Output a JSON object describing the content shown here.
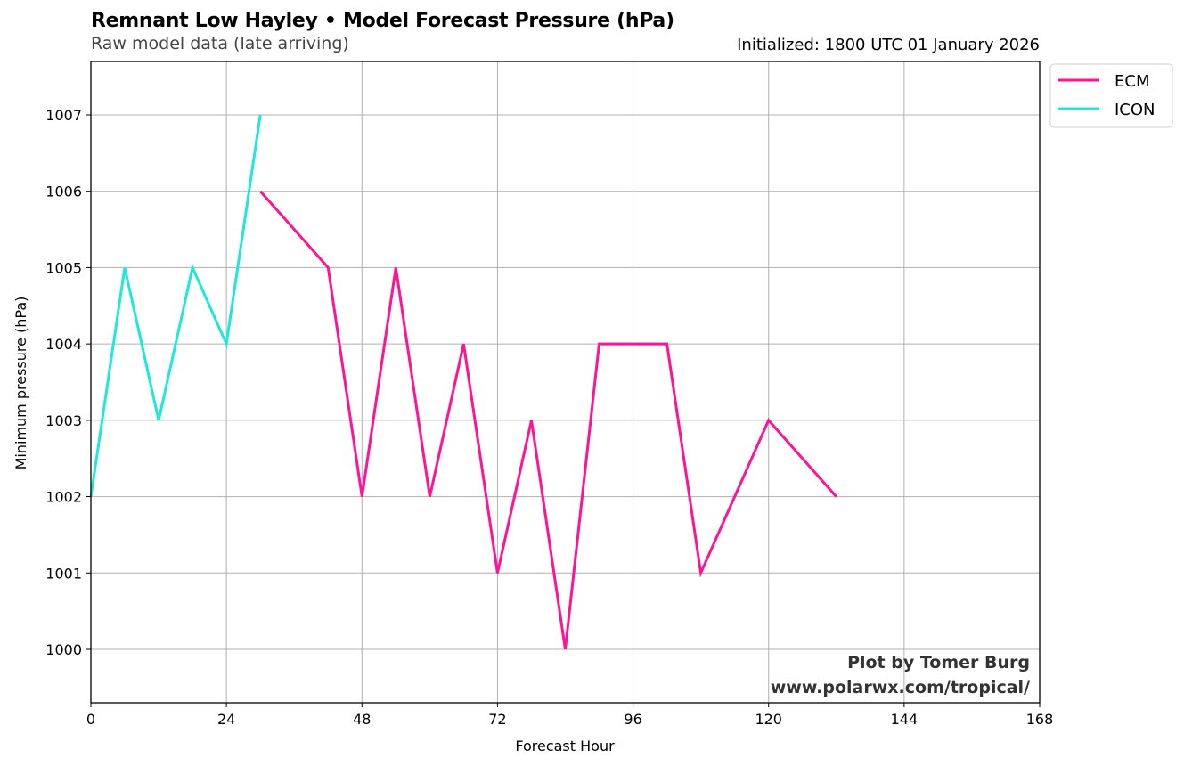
{
  "header": {
    "title": "Remnant Low Hayley • Model Forecast Pressure (hPa)",
    "subtitle": "Raw model data (late arriving)",
    "initialized": "Initialized: 1800 UTC 01 January 2026"
  },
  "credits": {
    "line1": "Plot by Tomer Burg",
    "line2": "www.polarwx.com/tropical/"
  },
  "chart_data": {
    "type": "line",
    "title": "Remnant Low Hayley • Model Forecast Pressure (hPa)",
    "subtitle": "Raw model data (late arriving)",
    "xlabel": "Forecast Hour",
    "ylabel": "Minimum pressure (hPa)",
    "xlim": [
      0,
      168
    ],
    "ylim": [
      999.3,
      1007.7
    ],
    "xticks": [
      0,
      24,
      48,
      72,
      96,
      120,
      144,
      168
    ],
    "yticks": [
      1000,
      1001,
      1002,
      1003,
      1004,
      1005,
      1006,
      1007
    ],
    "grid": true,
    "legend_position": "outside-top-right",
    "series": [
      {
        "name": "ECM",
        "color": "#ff1493",
        "x": [
          30,
          42,
          48,
          54,
          60,
          66,
          72,
          78,
          84,
          90,
          102,
          108,
          120,
          132
        ],
        "y": [
          1006,
          1005,
          1002,
          1005,
          1002,
          1004,
          1001,
          1003,
          1000,
          1004,
          1004,
          1001,
          1003,
          1002
        ]
      },
      {
        "name": "ICON",
        "color": "#1fe8d8",
        "x": [
          0,
          6,
          12,
          18,
          24,
          30
        ],
        "y": [
          1002,
          1005,
          1003,
          1005,
          1004,
          1007
        ]
      }
    ]
  }
}
